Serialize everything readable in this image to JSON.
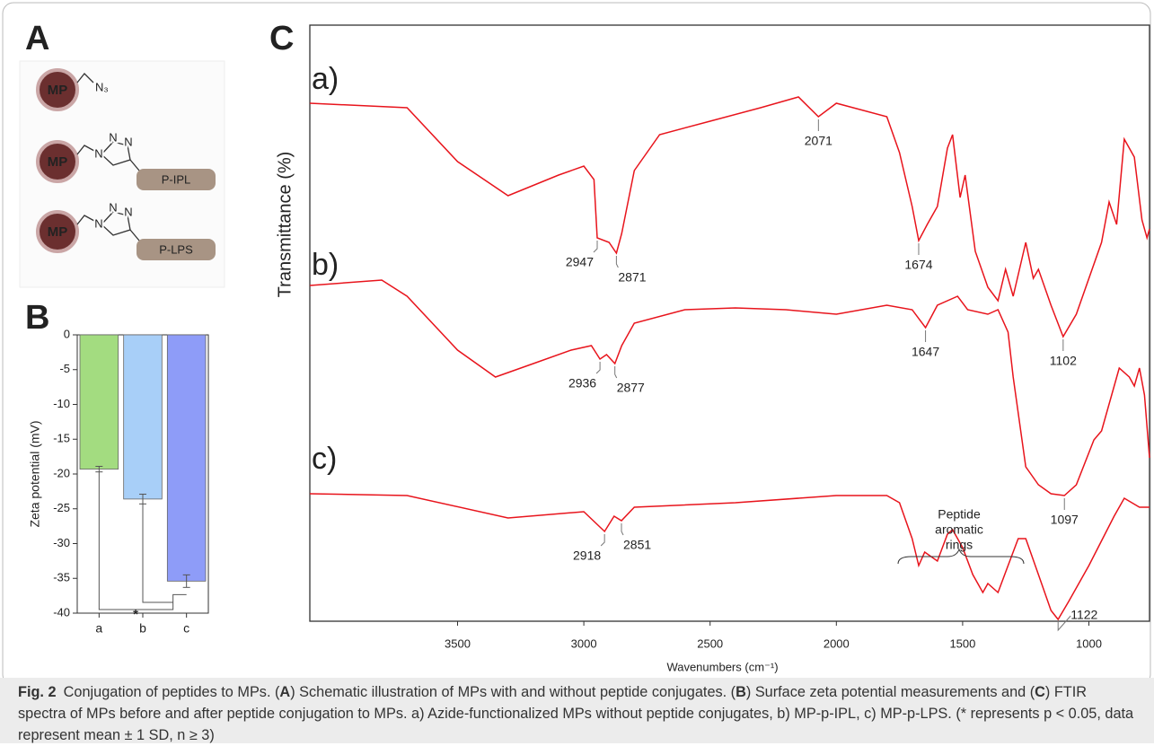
{
  "panel_a": {
    "label": "A",
    "particles": [
      {
        "core": "MP",
        "group": "N₃"
      },
      {
        "core": "MP",
        "atoms": [
          "N",
          "N",
          "N"
        ],
        "peptide": "P-IPL"
      },
      {
        "core": "MP",
        "atoms": [
          "N",
          "N",
          "N"
        ],
        "peptide": "P-LPS"
      }
    ]
  },
  "chart_data": [
    {
      "type": "bar",
      "panel": "B",
      "y_label": "Zeta potential (mV)",
      "categories": [
        "a",
        "b",
        "c"
      ],
      "values": [
        -19.3,
        -23.6,
        -35.4
      ],
      "errors": [
        0.4,
        0.7,
        0.9
      ],
      "colors": [
        "#a3dc80",
        "#a8cff8",
        "#8e9cf8"
      ],
      "ylim": [
        -40,
        0
      ],
      "yticks": [
        0,
        -5,
        -10,
        -15,
        -20,
        -25,
        -30,
        -35,
        -40
      ],
      "significance": "*"
    },
    {
      "type": "line",
      "panel": "C",
      "y_label": "Transmittance (%)",
      "x_label": "Wavenumbers (cm⁻¹)",
      "xlim": [
        4085,
        760
      ],
      "xticks": [
        3500,
        3000,
        2500,
        2000,
        1500,
        1000
      ],
      "ylim": [
        0,
        664
      ],
      "annotation_lines": [
        "Peptide",
        "aromatic",
        "rings"
      ],
      "series": [
        {
          "name": "a)",
          "color": "#e8141c",
          "x": [
            4085,
            3700,
            3500,
            3300,
            3100,
            3000,
            2960,
            2947,
            2900,
            2871,
            2850,
            2800,
            2700,
            2500,
            2300,
            2150,
            2071,
            2000,
            1800,
            1750,
            1700,
            1674,
            1640,
            1600,
            1560,
            1540,
            1510,
            1490,
            1450,
            1400,
            1360,
            1330,
            1300,
            1250,
            1220,
            1200,
            1150,
            1102,
            1050,
            950,
            920,
            890,
            860,
            820,
            790,
            770,
            760
          ],
          "values": [
            577,
            572,
            512,
            474,
            497,
            507,
            492,
            427,
            422,
            410,
            432,
            502,
            542,
            557,
            572,
            584,
            562,
            577,
            562,
            522,
            462,
            424,
            442,
            462,
            527,
            542,
            472,
            497,
            412,
            372,
            357,
            392,
            362,
            422,
            382,
            392,
            352,
            317,
            342,
            422,
            467,
            442,
            537,
            517,
            447,
            427,
            437
          ],
          "peaks": [
            2947,
            2871,
            2071,
            1674,
            1102
          ]
        },
        {
          "name": "b)",
          "color": "#e8141c",
          "x": [
            4085,
            3800,
            3700,
            3500,
            3350,
            3200,
            3050,
            2970,
            2936,
            2910,
            2877,
            2850,
            2800,
            2600,
            2400,
            2200,
            2000,
            1800,
            1700,
            1647,
            1600,
            1520,
            1480,
            1400,
            1360,
            1320,
            1300,
            1250,
            1200,
            1150,
            1097,
            1050,
            980,
            950,
            880,
            840,
            820,
            800,
            780,
            760
          ],
          "values": [
            374,
            380,
            362,
            302,
            272,
            287,
            302,
            307,
            292,
            297,
            287,
            307,
            332,
            347,
            349,
            347,
            342,
            352,
            347,
            327,
            352,
            362,
            347,
            342,
            347,
            322,
            272,
            172,
            152,
            142,
            140,
            152,
            202,
            212,
            282,
            272,
            262,
            282,
            252,
            182
          ],
          "peaks": [
            2936,
            2877,
            1647,
            1097
          ]
        },
        {
          "name": "c)",
          "color": "#e8141c",
          "x": [
            4085,
            3700,
            3300,
            3000,
            2918,
            2880,
            2851,
            2800,
            2400,
            2000,
            1800,
            1750,
            1700,
            1674,
            1650,
            1600,
            1560,
            1540,
            1500,
            1460,
            1420,
            1400,
            1360,
            1320,
            1280,
            1250,
            1200,
            1150,
            1122,
            1080,
            1000,
            900,
            860,
            800,
            760
          ],
          "values": [
            142,
            140,
            115,
            122,
            100,
            117,
            112,
            127,
            132,
            140,
            140,
            132,
            92,
            62,
            77,
            67,
            97,
            102,
            82,
            52,
            32,
            42,
            32,
            62,
            92,
            92,
            52,
            12,
            2,
            22,
            62,
            117,
            137,
            127,
            127
          ],
          "peaks": [
            2918,
            2851,
            1122
          ]
        }
      ]
    }
  ],
  "caption": {
    "label": "Fig. 2",
    "segments": [
      "Conjugation of peptides to MPs. (",
      "A",
      ") Schematic illustration of MPs with and without peptide conjugates. (",
      "B",
      ") Surface zeta potential measurements and (",
      "C",
      ") FTIR spectra of MPs before and after peptide conjugation to MPs. a) Azide-functionalized MPs without peptide conjugates, b) MP-p-IPL, c) MP-p-LPS. (* represents p < 0.05, data represent mean ± 1 SD, n ≥ 3)"
    ]
  }
}
